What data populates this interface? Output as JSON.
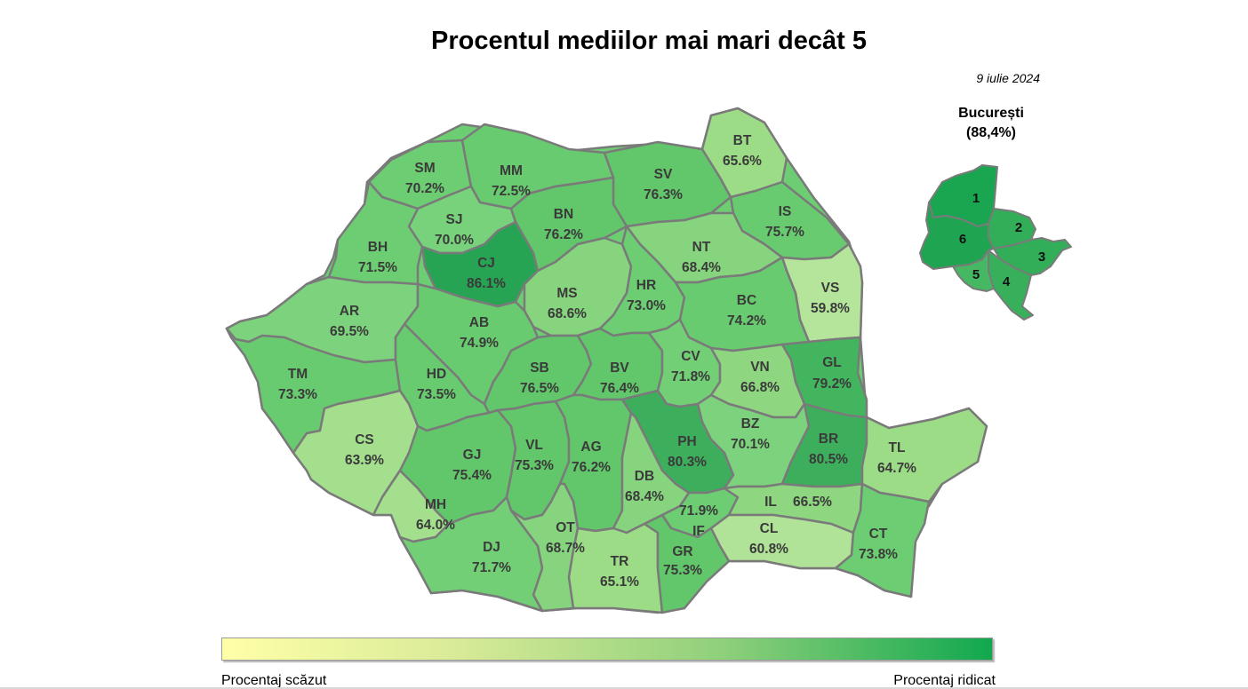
{
  "title": "Procentul mediilor mai mari decât 5",
  "date": "9 iulie 2024",
  "bucharest": {
    "title": "București",
    "value": "(88,4%)",
    "sectors": [
      "1",
      "2",
      "3",
      "4",
      "5",
      "6"
    ]
  },
  "legend": {
    "low_label": "Procentaj scăzut",
    "high_label": "Procentaj ridicat",
    "colors": [
      "#ffffa8",
      "#d9eb98",
      "#8fd07b",
      "#12a84e"
    ]
  },
  "counties": {
    "SM": "70.2%",
    "MM": "72.5%",
    "BT": "65.6%",
    "SV": "76.3%",
    "SJ": "70.0%",
    "BN": "76.2%",
    "IS": "75.7%",
    "BH": "71.5%",
    "CJ": "86.1%",
    "NT": "68.4%",
    "VS": "59.8%",
    "AR": "69.5%",
    "MS": "68.6%",
    "HR": "73.0%",
    "BC": "74.2%",
    "AB": "74.9%",
    "TM": "73.3%",
    "HD": "73.5%",
    "SB": "76.5%",
    "BV": "76.4%",
    "CV": "71.8%",
    "VN": "66.8%",
    "GL": "79.2%",
    "CS": "63.9%",
    "GJ": "75.4%",
    "VL": "75.3%",
    "AG": "76.2%",
    "PH": "80.3%",
    "BZ": "70.1%",
    "BR": "80.5%",
    "TL": "64.7%",
    "DB": "68.4%",
    "MH": "64.0%",
    "IF": "71.9%",
    "IL": "66.5%",
    "OT": "68.7%",
    "DJ": "71.7%",
    "CL": "60.8%",
    "TR": "65.1%",
    "GR": "75.3%",
    "CT": "73.8%"
  }
}
